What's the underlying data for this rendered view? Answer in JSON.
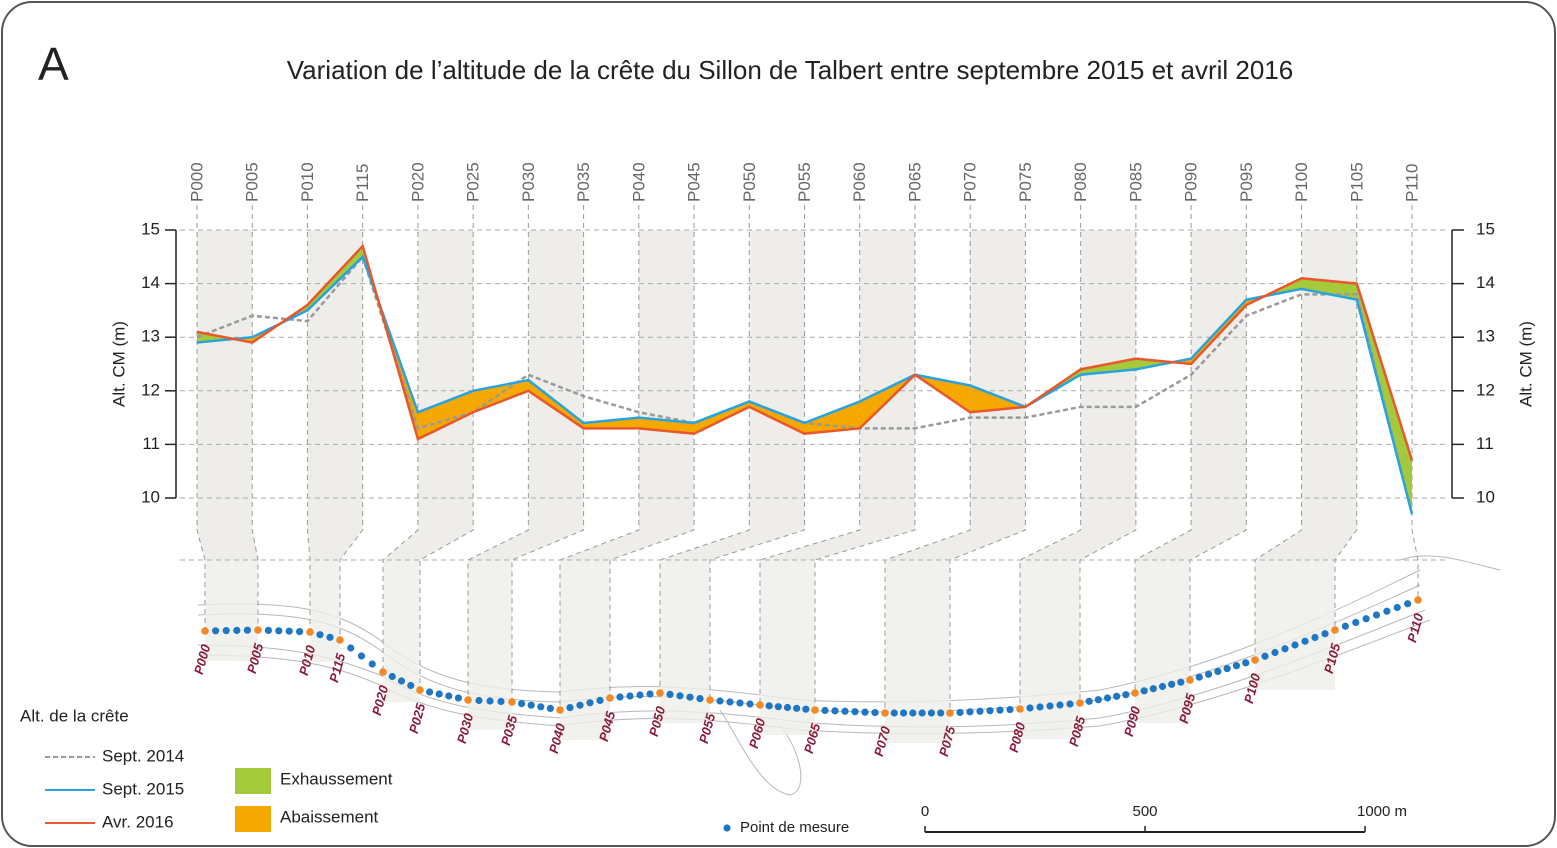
{
  "chart_data": {
    "type": "line",
    "panel": "A",
    "title": "Variation de l’altitude de la crête du Sillon de Talbert entre septembre 2015 et avril 2016",
    "y_label": "Alt. CM (m)",
    "categories": [
      "P000",
      "P005",
      "P010",
      "P115",
      "P020",
      "P025",
      "P030",
      "P035",
      "P040",
      "P045",
      "P050",
      "P055",
      "P060",
      "P065",
      "P070",
      "P075",
      "P080",
      "P085",
      "P090",
      "P095",
      "P100",
      "P105",
      "P110"
    ],
    "series": [
      {
        "name": "Sept. 2014",
        "color": "#9a9a9a",
        "linestyle": "dashed",
        "values": [
          13.0,
          13.4,
          13.3,
          14.5,
          11.3,
          11.6,
          12.3,
          11.9,
          11.6,
          11.4,
          11.8,
          11.4,
          11.3,
          11.3,
          11.5,
          11.5,
          11.7,
          11.7,
          12.3,
          13.4,
          13.8,
          13.8,
          9.7
        ]
      },
      {
        "name": "Sept. 2015",
        "color": "#29a3dd",
        "linestyle": "solid",
        "values": [
          12.9,
          13.0,
          13.5,
          14.5,
          11.6,
          12.0,
          12.2,
          11.4,
          11.5,
          11.4,
          11.8,
          11.4,
          11.8,
          12.3,
          12.1,
          11.7,
          12.3,
          12.4,
          12.6,
          13.7,
          13.9,
          13.7,
          9.7
        ]
      },
      {
        "name": "Avr. 2016",
        "color": "#e8582a",
        "linestyle": "solid",
        "values": [
          13.1,
          12.9,
          13.6,
          14.7,
          11.1,
          11.6,
          12.0,
          11.3,
          11.3,
          11.2,
          11.7,
          11.2,
          11.3,
          12.3,
          11.6,
          11.7,
          12.4,
          12.6,
          12.5,
          13.6,
          14.1,
          14.0,
          10.7
        ]
      }
    ],
    "ylim": [
      10,
      15
    ],
    "yticks": [
      10,
      11,
      12,
      13,
      14,
      15
    ],
    "y2lim": [
      10,
      15
    ],
    "y2ticks": [
      10,
      11,
      12,
      13,
      14,
      15
    ],
    "legend_title": "Alt. de la crête",
    "fill_legend": [
      {
        "name": "Exhaussement",
        "color": "#a4c93a"
      },
      {
        "name": "Abaissement",
        "color": "#f5a800"
      }
    ],
    "point_legend": {
      "name": "Point de mesure",
      "color": "#1f77c4",
      "profile_color": "#f08a24"
    },
    "scale_bar": {
      "ticks": [
        {
          "value": 0,
          "label": "0"
        },
        {
          "value": 500,
          "label": "500"
        },
        {
          "value": 1000,
          "label": "1000 m"
        }
      ]
    }
  }
}
